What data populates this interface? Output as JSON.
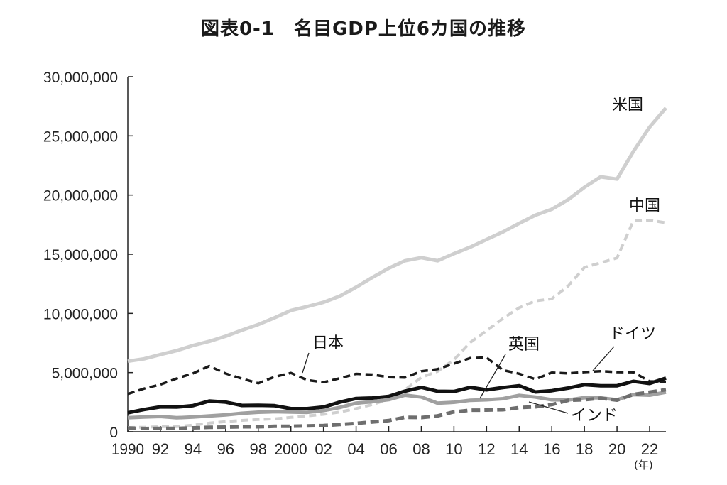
{
  "title": "図表0-1　名目GDP上位6カ国の推移",
  "colors": {
    "us": "#cfcfcf",
    "cn": "#cfcfcf",
    "jp": "#1a1a1a",
    "de": "#111111",
    "uk": "#a0a0a0",
    "in": "#6e6e6e"
  },
  "chart_data": {
    "type": "line",
    "title": "名目GDP上位6カ国の推移",
    "xlabel": "(年)",
    "ylabel": "",
    "x": [
      1990,
      1991,
      1992,
      1993,
      1994,
      1995,
      1996,
      1997,
      1998,
      1999,
      2000,
      2001,
      2002,
      2003,
      2004,
      2005,
      2006,
      2007,
      2008,
      2009,
      2010,
      2011,
      2012,
      2013,
      2014,
      2015,
      2016,
      2017,
      2018,
      2019,
      2020,
      2021,
      2022,
      2023
    ],
    "xticks": [
      {
        "value": 1990,
        "label": "1990"
      },
      {
        "value": 1992,
        "label": "92"
      },
      {
        "value": 1994,
        "label": "94"
      },
      {
        "value": 1996,
        "label": "96"
      },
      {
        "value": 1998,
        "label": "98"
      },
      {
        "value": 2000,
        "label": "2000"
      },
      {
        "value": 2002,
        "label": "02"
      },
      {
        "value": 2004,
        "label": "04"
      },
      {
        "value": 2006,
        "label": "06"
      },
      {
        "value": 2008,
        "label": "08"
      },
      {
        "value": 2010,
        "label": "10"
      },
      {
        "value": 2012,
        "label": "12"
      },
      {
        "value": 2014,
        "label": "14"
      },
      {
        "value": 2016,
        "label": "16"
      },
      {
        "value": 2018,
        "label": "18"
      },
      {
        "value": 2020,
        "label": "20"
      },
      {
        "value": 2022,
        "label": "22"
      }
    ],
    "yticks": [
      {
        "value": 0,
        "label": "0"
      },
      {
        "value": 5000000,
        "label": "5,000,000"
      },
      {
        "value": 10000000,
        "label": "10,000,000"
      },
      {
        "value": 15000000,
        "label": "15,000,000"
      },
      {
        "value": 20000000,
        "label": "20,000,000"
      },
      {
        "value": 25000000,
        "label": "25,000,000"
      },
      {
        "value": 30000000,
        "label": "30,000,000"
      }
    ],
    "ylim": [
      0,
      30000000
    ],
    "xlim": [
      1990,
      2023
    ],
    "grid": false,
    "series": [
      {
        "key": "us",
        "name": "米国",
        "dash": false,
        "width": 5,
        "values": [
          5960000,
          6160000,
          6520000,
          6860000,
          7290000,
          7640000,
          8070000,
          8580000,
          9060000,
          9630000,
          10250000,
          10580000,
          10940000,
          11460000,
          12210000,
          13040000,
          13820000,
          14450000,
          14710000,
          14450000,
          15050000,
          15600000,
          16250000,
          16880000,
          17610000,
          18300000,
          18800000,
          19610000,
          20660000,
          21540000,
          21350000,
          23680000,
          25740000,
          27360000
        ]
      },
      {
        "key": "cn",
        "name": "中国",
        "dash": true,
        "width": 4,
        "values": [
          360000,
          380000,
          430000,
          440000,
          560000,
          730000,
          860000,
          960000,
          1030000,
          1090000,
          1210000,
          1340000,
          1470000,
          1660000,
          1960000,
          2290000,
          2750000,
          3550000,
          4590000,
          5100000,
          6090000,
          7550000,
          8530000,
          9570000,
          10480000,
          11060000,
          11230000,
          12310000,
          13890000,
          14280000,
          14690000,
          17820000,
          17880000,
          17660000
        ]
      },
      {
        "key": "jp",
        "name": "日本",
        "dash": true,
        "width": 3.5,
        "values": [
          3190000,
          3650000,
          3990000,
          4500000,
          4930000,
          5550000,
          4920000,
          4490000,
          4100000,
          4640000,
          4970000,
          4370000,
          4180000,
          4520000,
          4890000,
          4830000,
          4600000,
          4580000,
          5110000,
          5290000,
          5760000,
          6230000,
          6270000,
          5210000,
          4900000,
          4440000,
          5000000,
          4930000,
          5040000,
          5120000,
          5040000,
          5030000,
          4260000,
          4210000
        ]
      },
      {
        "key": "de",
        "name": "ドイツ",
        "dash": false,
        "width": 5,
        "values": [
          1600000,
          1880000,
          2100000,
          2080000,
          2210000,
          2590000,
          2500000,
          2220000,
          2240000,
          2200000,
          1950000,
          1950000,
          2080000,
          2500000,
          2810000,
          2850000,
          2990000,
          3430000,
          3750000,
          3420000,
          3400000,
          3750000,
          3540000,
          3730000,
          3890000,
          3360000,
          3470000,
          3690000,
          3970000,
          3890000,
          3890000,
          4260000,
          4080000,
          4530000
        ]
      },
      {
        "key": "uk",
        "name": "英国",
        "dash": false,
        "width": 5,
        "values": [
          1190000,
          1240000,
          1290000,
          1180000,
          1240000,
          1340000,
          1420000,
          1560000,
          1650000,
          1690000,
          1660000,
          1640000,
          1790000,
          2050000,
          2420000,
          2540000,
          2710000,
          3090000,
          2930000,
          2410000,
          2490000,
          2660000,
          2700000,
          2790000,
          3070000,
          2930000,
          2700000,
          2680000,
          2880000,
          2860000,
          2700000,
          3140000,
          3090000,
          3340000
        ]
      },
      {
        "key": "in",
        "name": "インド",
        "dash": true,
        "width": 5,
        "values": [
          320000,
          270000,
          290000,
          280000,
          330000,
          370000,
          390000,
          420000,
          420000,
          460000,
          470000,
          490000,
          520000,
          610000,
          710000,
          820000,
          940000,
          1220000,
          1200000,
          1340000,
          1680000,
          1820000,
          1830000,
          1860000,
          2040000,
          2100000,
          2290000,
          2650000,
          2700000,
          2830000,
          2670000,
          3150000,
          3350000,
          3550000
        ]
      }
    ]
  }
}
